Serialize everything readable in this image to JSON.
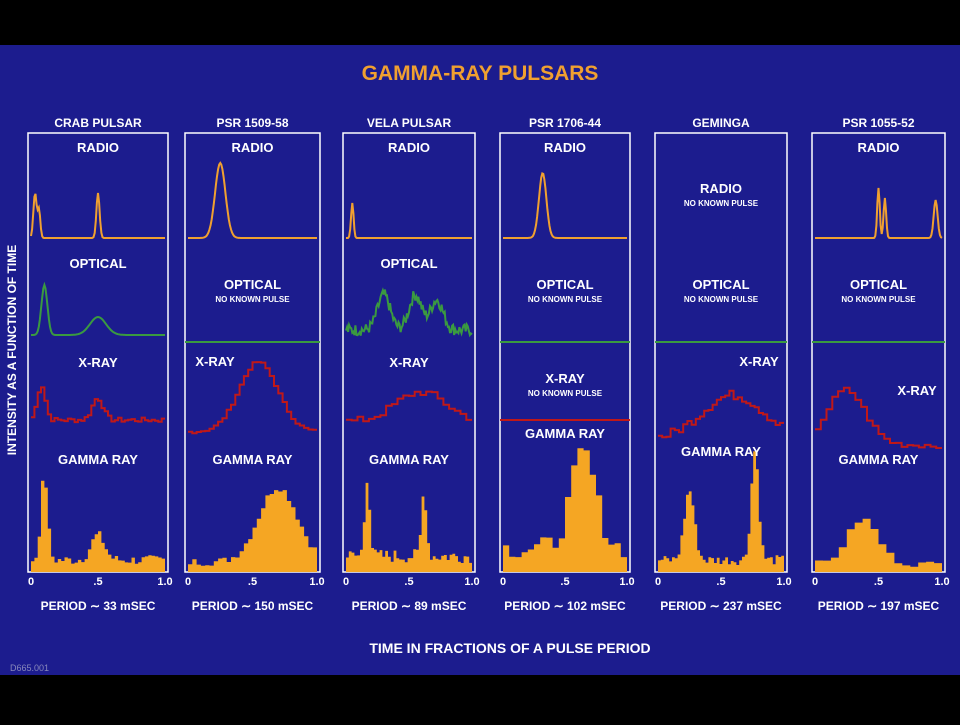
{
  "title": "GAMMA-RAY PULSARS",
  "y_axis_label": "INTENSITY AS A FUNCTION OF TIME",
  "x_axis_label": "TIME IN FRACTIONS OF A PULSE PERIOD",
  "x_ticks": [
    "0",
    ".5",
    "1.0"
  ],
  "code": "D665.001",
  "panels": [
    {
      "name": "CRAB PULSAR",
      "period": "PERIOD ∼ 33 mSEC",
      "bands": [
        {
          "label": "RADIO"
        },
        {
          "label": "OPTICAL"
        },
        {
          "label": "X-RAY"
        },
        {
          "label": "GAMMA RAY"
        }
      ]
    },
    {
      "name": "PSR 1509-58",
      "period": "PERIOD ∼ 150 mSEC",
      "bands": [
        {
          "label": "RADIO"
        },
        {
          "label": "OPTICAL",
          "note": "NO KNOWN PULSE"
        },
        {
          "label": "X-RAY"
        },
        {
          "label": "GAMMA RAY"
        }
      ]
    },
    {
      "name": "VELA PULSAR",
      "period": "PERIOD ∼ 89 mSEC",
      "bands": [
        {
          "label": "RADIO"
        },
        {
          "label": "OPTICAL"
        },
        {
          "label": "X-RAY"
        },
        {
          "label": "GAMMA RAY"
        }
      ]
    },
    {
      "name": "PSR 1706-44",
      "period": "PERIOD ∼ 102 mSEC",
      "bands": [
        {
          "label": "RADIO"
        },
        {
          "label": "OPTICAL",
          "note": "NO KNOWN PULSE"
        },
        {
          "label": "X-RAY",
          "note": "NO KNOWN PULSE"
        },
        {
          "label": "GAMMA RAY"
        }
      ]
    },
    {
      "name": "GEMINGA",
      "period": "PERIOD ∼ 237 mSEC",
      "bands": [
        {
          "label": "RADIO",
          "note": "NO KNOWN PULSE"
        },
        {
          "label": "OPTICAL",
          "note": "NO KNOWN PULSE"
        },
        {
          "label": "X-RAY"
        },
        {
          "label": "GAMMA RAY"
        }
      ]
    },
    {
      "name": "PSR 1055-52",
      "period": "PERIOD ∼ 197 mSEC",
      "bands": [
        {
          "label": "RADIO"
        },
        {
          "label": "OPTICAL",
          "note": "NO KNOWN PULSE"
        },
        {
          "label": "X-RAY"
        },
        {
          "label": "GAMMA RAY"
        }
      ]
    }
  ]
}
